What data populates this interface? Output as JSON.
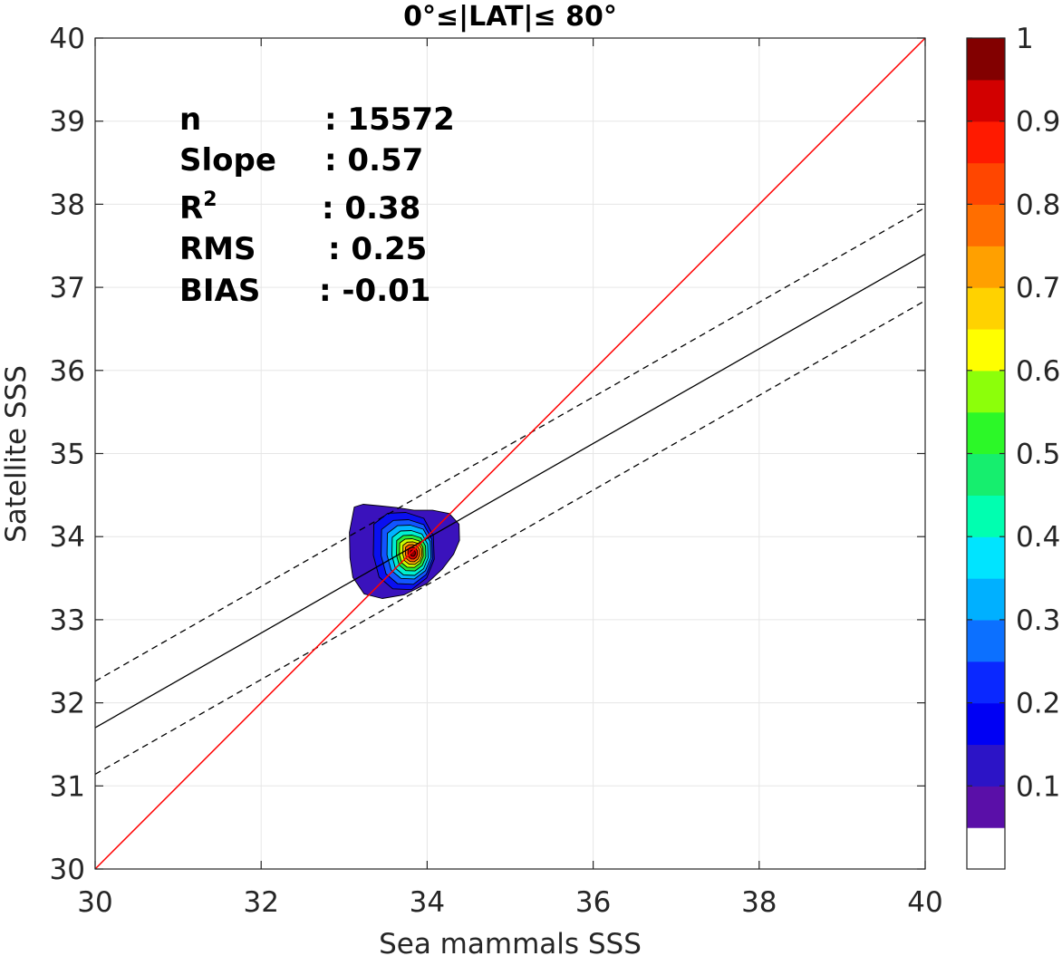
{
  "chart_data": {
    "type": "contour-scatter",
    "title": "0°≤|LAT|≤ 80°",
    "xlabel": "Sea mammals  SSS",
    "ylabel": "Satellite SSS",
    "xlim": [
      30,
      40
    ],
    "ylim": [
      30,
      40
    ],
    "x_ticks": [
      "30",
      "32",
      "34",
      "36",
      "38",
      "40"
    ],
    "y_ticks": [
      "30",
      "31",
      "32",
      "33",
      "34",
      "35",
      "36",
      "37",
      "38",
      "39",
      "40"
    ],
    "grid": true,
    "stats": [
      {
        "label": "n",
        "value": ": 15572"
      },
      {
        "label": "Slope",
        "value": ": 0.57"
      },
      {
        "label": "R",
        "sup": "2",
        "value": ": 0.38"
      },
      {
        "label": "RMS",
        "value": ": 0.25"
      },
      {
        "label": "BIAS",
        "value": ": -0.01"
      }
    ],
    "lines": {
      "identity": {
        "color": "#ff0000",
        "from": [
          30,
          30
        ],
        "to": [
          40,
          40
        ]
      },
      "fit": {
        "slope": 0.57,
        "intercept": 14.6,
        "color": "#000000",
        "style": "solid"
      },
      "upper_bound": {
        "slope": 0.57,
        "intercept": 15.16,
        "color": "#000000",
        "style": "dashed"
      },
      "lower_bound": {
        "slope": 0.57,
        "intercept": 14.04,
        "color": "#000000",
        "style": "dashed"
      }
    },
    "density_peak": {
      "x": 33.83,
      "y": 33.8
    },
    "colorbar": {
      "ticks": [
        "0.1",
        "0.2",
        "0.3",
        "0.4",
        "0.5",
        "0.6",
        "0.7",
        "0.8",
        "0.9",
        "1"
      ],
      "colors": [
        "#ffffff",
        "#5a0fa8",
        "#2c14c6",
        "#0000f4",
        "#0a28ff",
        "#0c70ff",
        "#00b0ff",
        "#00e4ff",
        "#00ffb0",
        "#16ee6e",
        "#2cf828",
        "#8cff0a",
        "#ffff00",
        "#ffd200",
        "#ffa000",
        "#ff6e00",
        "#ff4600",
        "#ff1a00",
        "#d20000",
        "#820000"
      ]
    }
  }
}
